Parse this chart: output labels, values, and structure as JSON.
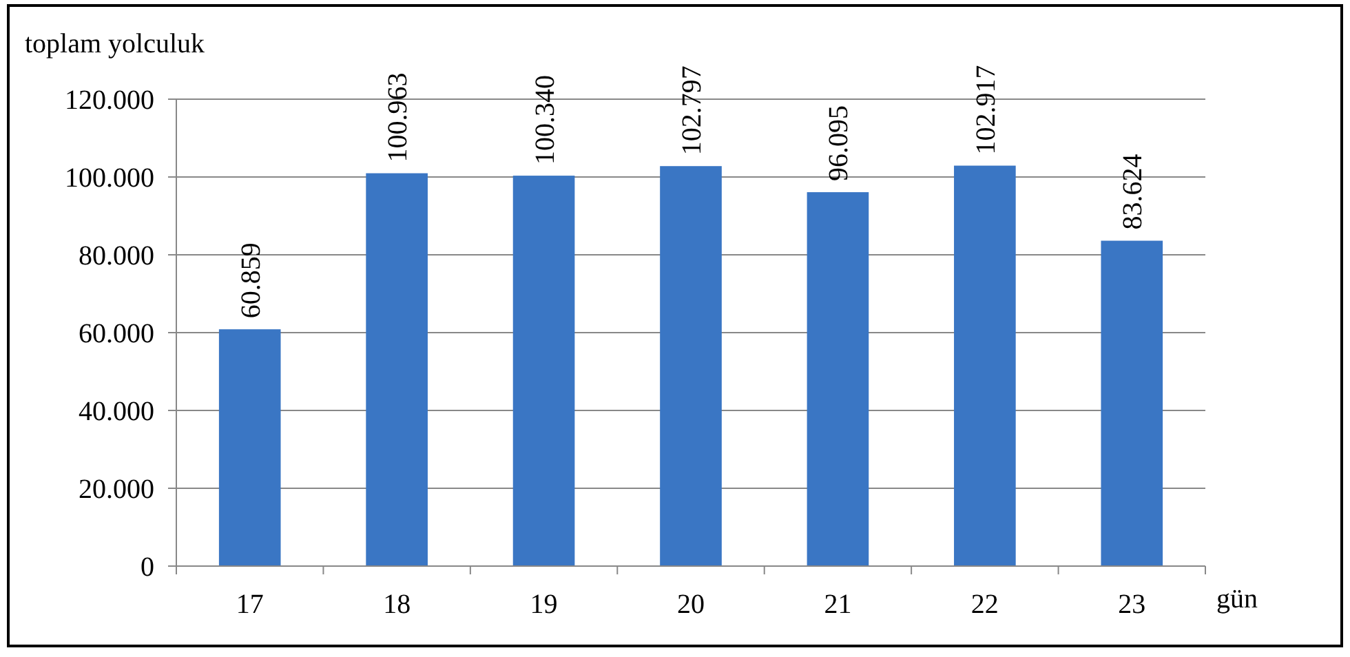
{
  "chart_data": {
    "type": "bar",
    "ylabel": "toplam yolculuk",
    "xlabel": "gün",
    "categories": [
      "17",
      "18",
      "19",
      "20",
      "21",
      "22",
      "23"
    ],
    "values": [
      60859,
      100963,
      100340,
      102797,
      96095,
      102917,
      83624
    ],
    "value_labels": [
      "60.859",
      "100.963",
      "100.340",
      "102.797",
      "96.095",
      "102.917",
      "83.624"
    ],
    "color": "#3a76c4",
    "ylim": [
      0,
      120000
    ],
    "yticks": [
      0,
      {
        "value": 20000,
        "label": "20.000"
      },
      {
        "value": 40000,
        "label": "40.000"
      },
      {
        "value": 60000,
        "label": "60.000"
      },
      {
        "value": 80000,
        "label": "80.000"
      },
      {
        "value": 100000,
        "label": "100.000"
      },
      {
        "value": 120000,
        "label": "120.000"
      }
    ],
    "grid": "y"
  }
}
